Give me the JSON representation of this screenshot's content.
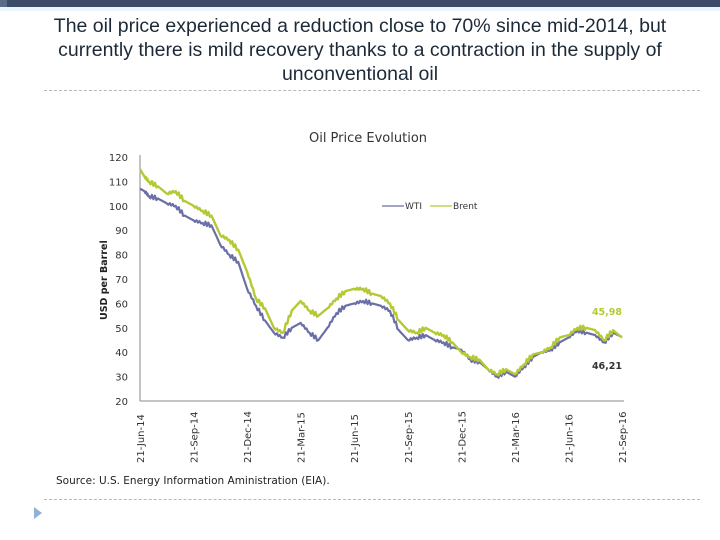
{
  "slide": {
    "title": "The oil price experienced a reduction close to 70% since mid-2014, but currently there is mild recovery thanks to a contraction in the supply of unconventional oil",
    "source": "Source: U.S. Energy Information Aministration (EIA)."
  },
  "colors": {
    "wti": "#6b6fa8",
    "brent": "#b5c934",
    "header_bar": "#3d4a68",
    "bullet": "#8fb2d6"
  },
  "chart_data": {
    "type": "line",
    "title": "Oil Price Evolution",
    "xlabel": "",
    "ylabel": "USD per Barrel",
    "ylim": [
      20,
      120
    ],
    "yticks": [
      20,
      30,
      40,
      50,
      60,
      70,
      80,
      90,
      100,
      110,
      120
    ],
    "x_unit": "months since 21-Jun-14",
    "xlim": [
      0,
      27
    ],
    "xtick_labels": [
      "21-Jun-14",
      "21-Sep-14",
      "21-Dec-14",
      "21-Mar-15",
      "21-Jun-15",
      "21-Sep-15",
      "21-Dec-15",
      "21-Mar-16",
      "21-Jun-16",
      "21-Sep-16"
    ],
    "xtick_positions": [
      0,
      3,
      6,
      9,
      12,
      15,
      18,
      21,
      24,
      27
    ],
    "grid": false,
    "legend": {
      "position": "top-right",
      "entries": [
        "WTI",
        "Brent"
      ]
    },
    "x": [
      0,
      0.25,
      0.5,
      1,
      1.5,
      2,
      2.5,
      3,
      3.5,
      4,
      4.5,
      5,
      5.5,
      6,
      6.5,
      7,
      7.5,
      8,
      8.5,
      9,
      9.5,
      10,
      10.5,
      11,
      11.5,
      12,
      12.5,
      13,
      13.5,
      14,
      14.5,
      15,
      15.5,
      16,
      16.5,
      17,
      17.5,
      18,
      18.5,
      19,
      19.5,
      20,
      20.5,
      21,
      21.5,
      22,
      22.5,
      23,
      23.5,
      24,
      24.5,
      25,
      25.5,
      26,
      26.5,
      27
    ],
    "series": [
      {
        "name": "WTI",
        "values": [
          107,
          106,
          104,
          103,
          101,
          100,
          96,
          94,
          93,
          92,
          84,
          80,
          77,
          66,
          59,
          53,
          48,
          46,
          50,
          52,
          48,
          45,
          50,
          56,
          59,
          60,
          61,
          60,
          59,
          57,
          49,
          45,
          46,
          47,
          45,
          44,
          42,
          41,
          37,
          36,
          33,
          30,
          32,
          30,
          34,
          38,
          40,
          41,
          44,
          46,
          49,
          48,
          47,
          44,
          48,
          46.21
        ]
      },
      {
        "name": "Brent",
        "values": [
          115,
          112,
          110,
          108,
          105,
          106,
          102,
          100,
          98,
          96,
          88,
          86,
          82,
          73,
          62,
          58,
          50,
          48,
          57,
          61,
          57,
          55,
          58,
          62,
          65,
          66,
          66,
          64,
          63,
          60,
          53,
          49,
          48,
          50,
          48,
          47,
          44,
          40,
          38,
          37,
          33,
          31,
          33,
          31,
          35,
          39,
          40,
          42,
          46,
          47,
          50,
          50,
          49,
          45,
          49,
          45.98
        ]
      }
    ],
    "annotations": [
      {
        "series": "Brent",
        "label": "45,98"
      },
      {
        "series": "WTI",
        "label": "46,21"
      }
    ]
  }
}
